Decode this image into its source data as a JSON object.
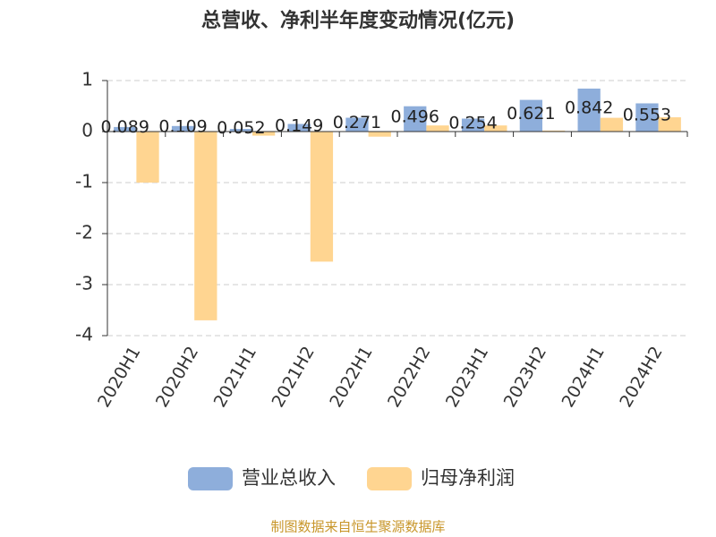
{
  "chart_data": {
    "type": "bar",
    "title": "总营收、净利半年度变动情况(亿元)",
    "categories": [
      "2020H1",
      "2020H2",
      "2021H1",
      "2021H2",
      "2022H1",
      "2022H2",
      "2023H1",
      "2023H2",
      "2024H1",
      "2024H2"
    ],
    "series": [
      {
        "name": "营业总收入",
        "color": "#8eaedb",
        "values": [
          0.089,
          0.109,
          0.052,
          0.149,
          0.271,
          0.496,
          0.254,
          0.621,
          0.842,
          0.553
        ]
      },
      {
        "name": "归母净利润",
        "color": "#ffd591",
        "values": [
          -1.0,
          -3.7,
          -0.08,
          -2.55,
          -0.1,
          0.12,
          0.12,
          0.02,
          0.27,
          0.28
        ]
      }
    ],
    "ylim": [
      -4,
      1
    ],
    "yticks": [
      -4,
      -3,
      -2,
      -1,
      0,
      1
    ],
    "grid": true,
    "source": "制图数据来自恒生聚源数据库"
  }
}
